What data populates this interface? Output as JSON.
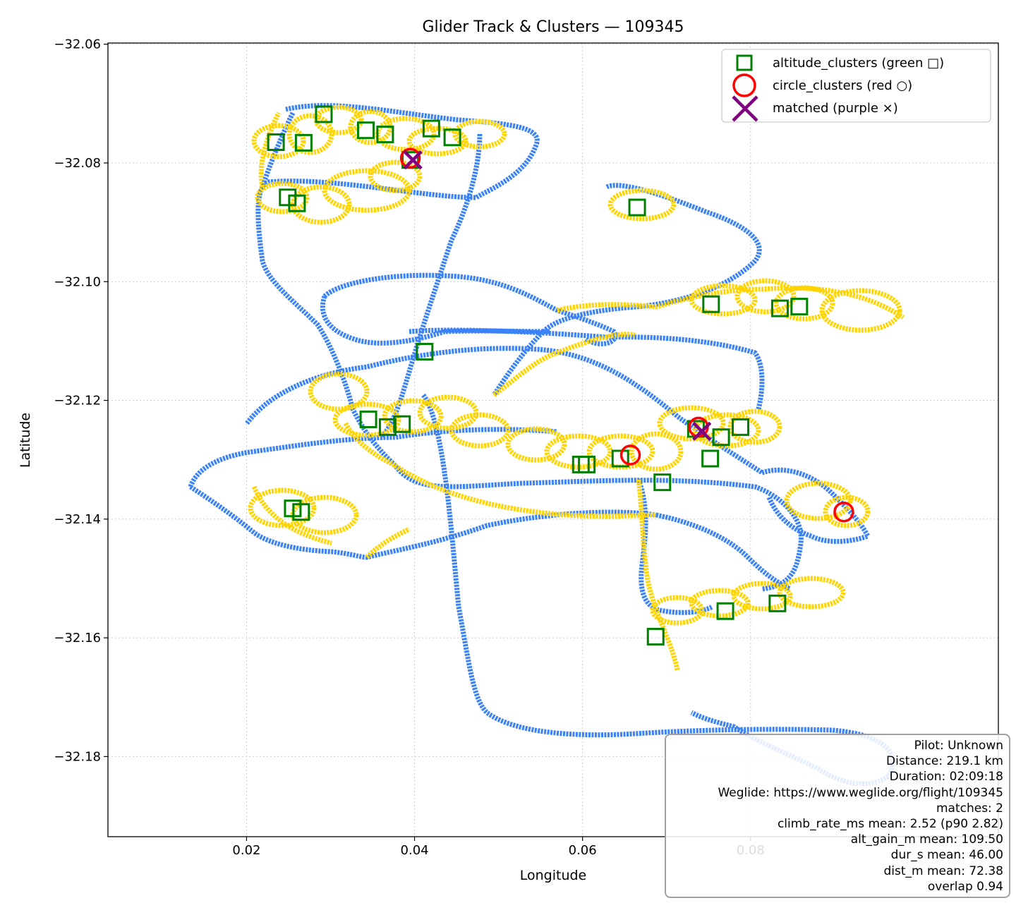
{
  "chart_data": {
    "type": "scatter",
    "title": "Glider Track & Clusters — 109345",
    "xlabel": "Longitude",
    "ylabel": "Latitude",
    "xlim": [
      0.0035,
      0.1095
    ],
    "ylim": [
      -32.1935,
      -32.0598
    ],
    "x_ticks": [
      0.02,
      0.04,
      0.06,
      0.08
    ],
    "x_tick_labels": [
      "0.02",
      "0.04",
      "0.06",
      "0.08"
    ],
    "y_ticks": [
      -32.06,
      -32.08,
      -32.1,
      -32.12,
      -32.14,
      -32.16,
      -32.18
    ],
    "y_tick_labels": [
      "−32.06",
      "−32.08",
      "−32.10",
      "−32.12",
      "−32.14",
      "−32.16",
      "−32.18"
    ],
    "grid": true,
    "legend_position": "top-right",
    "colors": {
      "track": "#3b82f6",
      "track_climb": "#ffd400",
      "altitude_clusters": "#008000",
      "circle_clusters": "#ff0000",
      "matched": "#800080"
    },
    "series": [
      {
        "name": "altitude_clusters (green □)",
        "marker": "square",
        "points": [
          [
            0.0235,
            -32.0765
          ],
          [
            0.0268,
            -32.0766
          ],
          [
            0.0292,
            -32.0718
          ],
          [
            0.0249,
            -32.0858
          ],
          [
            0.026,
            -32.0868
          ],
          [
            0.0342,
            -32.0745
          ],
          [
            0.0365,
            -32.0752
          ],
          [
            0.0395,
            -32.0795
          ],
          [
            0.042,
            -32.0742
          ],
          [
            0.0445,
            -32.0757
          ],
          [
            0.0665,
            -32.0875
          ],
          [
            0.0345,
            -32.1232
          ],
          [
            0.0368,
            -32.1245
          ],
          [
            0.0385,
            -32.124
          ],
          [
            0.0412,
            -32.1118
          ],
          [
            0.0598,
            -32.1308
          ],
          [
            0.0605,
            -32.1308
          ],
          [
            0.0645,
            -32.1298
          ],
          [
            0.0695,
            -32.1338
          ],
          [
            0.0735,
            -32.1248
          ],
          [
            0.0752,
            -32.1298
          ],
          [
            0.0765,
            -32.1262
          ],
          [
            0.0788,
            -32.1245
          ],
          [
            0.0753,
            -32.1038
          ],
          [
            0.0835,
            -32.1045
          ],
          [
            0.0858,
            -32.1042
          ],
          [
            0.0255,
            -32.1382
          ],
          [
            0.0265,
            -32.1388
          ],
          [
            0.0687,
            -32.1598
          ],
          [
            0.077,
            -32.1555
          ],
          [
            0.0832,
            -32.1542
          ]
        ]
      },
      {
        "name": "circle_clusters (red ○)",
        "marker": "circle",
        "points": [
          [
            0.0738,
            -32.1245
          ],
          [
            0.0911,
            -32.1388
          ],
          [
            0.0395,
            -32.0792
          ],
          [
            0.0657,
            -32.1292
          ]
        ]
      },
      {
        "name": "matched (purple ×)",
        "marker": "x",
        "points": [
          [
            0.0398,
            -32.0795
          ],
          [
            0.0742,
            -32.1252
          ]
        ]
      }
    ]
  },
  "info": {
    "lines": [
      "Pilot: Unknown",
      "Distance: 219.1 km",
      "Duration: 02:09:18",
      "Weglide: https://www.weglide.org/flight/109345",
      "matches: 2",
      "climb_rate_ms mean: 2.52 (p90 2.82)",
      "alt_gain_m mean: 109.50",
      "dur_s mean: 46.00",
      "dist_m mean: 72.38",
      "overlap 0.94"
    ]
  }
}
